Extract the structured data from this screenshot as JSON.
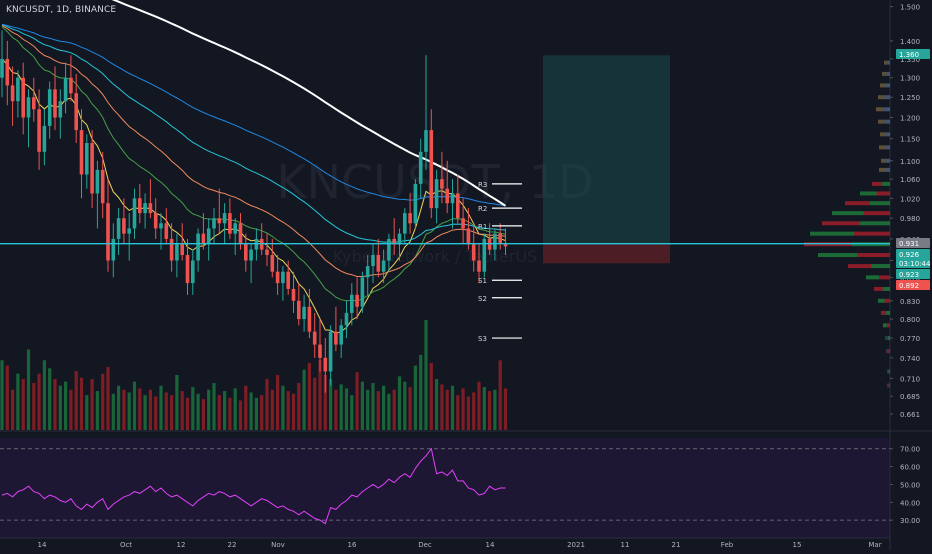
{
  "header": {
    "title": "KNCUSDT, 1D, BINANCE"
  },
  "watermark": {
    "symbol": "KNCUSDT, 1D",
    "description": "Kyber Network / TetherUS"
  },
  "chart_data": [
    {
      "type": "candlestick",
      "yscale": "log",
      "ylim": [
        0.64,
        1.52
      ],
      "price_ticks": [
        "1.500",
        "1.400",
        "1.350",
        "1.300",
        "1.250",
        "1.200",
        "1.150",
        "1.100",
        "1.060",
        "1.020",
        "0.980",
        "0.940",
        "0.900",
        "0.870",
        "0.830",
        "0.800",
        "0.770",
        "0.740",
        "0.710",
        "0.685",
        "0.661"
      ],
      "x_ticks": [
        "14",
        "Oct",
        "12",
        "22",
        "Nov",
        "16",
        "Dec",
        "14",
        "2021",
        "11",
        "21",
        "Feb",
        "15",
        "Mar"
      ],
      "price_labels": [
        {
          "text": "1.360",
          "color": "#26a69a"
        },
        {
          "text": "0.931",
          "color": "#787b86"
        },
        {
          "text": "0.926",
          "color": "#26a69a"
        },
        {
          "text": "03:10:44",
          "color": "#26a69a"
        },
        {
          "text": "0.923",
          "color": "#26a69a"
        },
        {
          "text": "0.892",
          "color": "#ef5350"
        }
      ],
      "pivot_levels": [
        {
          "label": "R3",
          "value": 1.05
        },
        {
          "label": "R2",
          "value": 1.0
        },
        {
          "label": "R1",
          "value": 0.965
        },
        {
          "label": "S1",
          "value": 0.865
        },
        {
          "label": "S2",
          "value": 0.835
        },
        {
          "label": "S3",
          "value": 0.77
        }
      ],
      "horizontal_line": {
        "value": 0.931,
        "color": "#26c6da"
      },
      "position_tool": {
        "entry": 0.931,
        "target": 1.36,
        "stop": 0.895
      },
      "candles": [
        [
          1.3,
          1.43,
          1.25,
          1.35
        ],
        [
          1.35,
          1.4,
          1.23,
          1.28
        ],
        [
          1.28,
          1.33,
          1.18,
          1.24
        ],
        [
          1.24,
          1.32,
          1.2,
          1.3
        ],
        [
          1.3,
          1.34,
          1.16,
          1.2
        ],
        [
          1.2,
          1.27,
          1.13,
          1.25
        ],
        [
          1.25,
          1.3,
          1.19,
          1.22
        ],
        [
          1.22,
          1.27,
          1.08,
          1.12
        ],
        [
          1.12,
          1.22,
          1.09,
          1.18
        ],
        [
          1.18,
          1.29,
          1.15,
          1.27
        ],
        [
          1.27,
          1.33,
          1.17,
          1.2
        ],
        [
          1.2,
          1.27,
          1.15,
          1.24
        ],
        [
          1.24,
          1.34,
          1.21,
          1.3
        ],
        [
          1.3,
          1.36,
          1.24,
          1.26
        ],
        [
          1.26,
          1.31,
          1.14,
          1.17
        ],
        [
          1.17,
          1.22,
          1.02,
          1.07
        ],
        [
          1.07,
          1.16,
          1.04,
          1.14
        ],
        [
          1.14,
          1.17,
          1.0,
          1.03
        ],
        [
          1.03,
          1.1,
          0.96,
          1.08
        ],
        [
          1.08,
          1.12,
          0.98,
          1.01
        ],
        [
          1.01,
          1.06,
          0.88,
          0.9
        ],
        [
          0.9,
          0.97,
          0.87,
          0.94
        ],
        [
          0.94,
          1.0,
          0.91,
          0.98
        ],
        [
          0.98,
          1.02,
          0.93,
          0.95
        ],
        [
          0.95,
          0.99,
          0.9,
          0.96
        ],
        [
          0.96,
          1.04,
          0.94,
          1.02
        ],
        [
          1.02,
          1.05,
          0.97,
          0.99
        ],
        [
          0.99,
          1.03,
          0.96,
          1.01
        ],
        [
          1.01,
          1.06,
          0.98,
          0.99
        ],
        [
          0.99,
          1.02,
          0.94,
          0.96
        ],
        [
          0.96,
          0.99,
          0.92,
          0.97
        ],
        [
          0.97,
          1.0,
          0.93,
          0.94
        ],
        [
          0.94,
          0.97,
          0.88,
          0.9
        ],
        [
          0.9,
          0.95,
          0.87,
          0.93
        ],
        [
          0.93,
          0.97,
          0.9,
          0.91
        ],
        [
          0.91,
          0.94,
          0.84,
          0.86
        ],
        [
          0.86,
          0.92,
          0.84,
          0.9
        ],
        [
          0.9,
          0.96,
          0.88,
          0.95
        ],
        [
          0.95,
          0.99,
          0.92,
          0.93
        ],
        [
          0.93,
          0.98,
          0.9,
          0.96
        ],
        [
          0.96,
          1.0,
          0.93,
          0.98
        ],
        [
          0.98,
          1.04,
          0.95,
          0.97
        ],
        [
          0.97,
          1.01,
          0.93,
          0.99
        ],
        [
          0.99,
          1.02,
          0.94,
          0.95
        ],
        [
          0.95,
          0.98,
          0.91,
          0.97
        ],
        [
          0.97,
          0.99,
          0.92,
          0.93
        ],
        [
          0.93,
          0.95,
          0.88,
          0.9
        ],
        [
          0.9,
          0.93,
          0.86,
          0.92
        ],
        [
          0.92,
          0.96,
          0.9,
          0.94
        ],
        [
          0.94,
          0.97,
          0.91,
          0.92
        ],
        [
          0.92,
          0.95,
          0.89,
          0.91
        ],
        [
          0.91,
          0.94,
          0.87,
          0.88
        ],
        [
          0.88,
          0.91,
          0.84,
          0.86
        ],
        [
          0.86,
          0.89,
          0.83,
          0.88
        ],
        [
          0.88,
          0.9,
          0.84,
          0.85
        ],
        [
          0.85,
          0.88,
          0.81,
          0.83
        ],
        [
          0.83,
          0.86,
          0.79,
          0.8
        ],
        [
          0.8,
          0.84,
          0.78,
          0.82
        ],
        [
          0.82,
          0.85,
          0.77,
          0.78
        ],
        [
          0.78,
          0.81,
          0.74,
          0.76
        ],
        [
          0.76,
          0.8,
          0.72,
          0.74
        ],
        [
          0.74,
          0.77,
          0.69,
          0.72
        ],
        [
          0.72,
          0.79,
          0.7,
          0.78
        ],
        [
          0.78,
          0.82,
          0.75,
          0.76
        ],
        [
          0.76,
          0.8,
          0.74,
          0.79
        ],
        [
          0.79,
          0.83,
          0.77,
          0.81
        ],
        [
          0.81,
          0.86,
          0.79,
          0.84
        ],
        [
          0.84,
          0.87,
          0.8,
          0.82
        ],
        [
          0.82,
          0.88,
          0.81,
          0.87
        ],
        [
          0.87,
          0.91,
          0.84,
          0.89
        ],
        [
          0.89,
          0.93,
          0.86,
          0.91
        ],
        [
          0.91,
          0.94,
          0.87,
          0.88
        ],
        [
          0.88,
          0.92,
          0.86,
          0.9
        ],
        [
          0.9,
          0.95,
          0.88,
          0.94
        ],
        [
          0.94,
          0.98,
          0.91,
          0.93
        ],
        [
          0.93,
          0.96,
          0.9,
          0.95
        ],
        [
          0.95,
          1.0,
          0.93,
          0.99
        ],
        [
          0.99,
          1.03,
          0.95,
          0.97
        ],
        [
          0.97,
          1.06,
          0.96,
          1.05
        ],
        [
          1.05,
          1.15,
          1.02,
          1.12
        ],
        [
          1.12,
          1.36,
          1.08,
          1.17
        ],
        [
          1.17,
          1.22,
          0.98,
          1.0
        ],
        [
          1.0,
          1.08,
          0.97,
          1.06
        ],
        [
          1.06,
          1.12,
          1.01,
          1.04
        ],
        [
          1.04,
          1.1,
          0.99,
          1.01
        ],
        [
          1.01,
          1.06,
          0.96,
          1.03
        ],
        [
          1.03,
          1.07,
          0.97,
          0.98
        ],
        [
          0.98,
          1.02,
          0.93,
          0.96
        ],
        [
          0.96,
          1.0,
          0.92,
          0.93
        ],
        [
          0.93,
          0.97,
          0.88,
          0.9
        ],
        [
          0.9,
          0.93,
          0.86,
          0.88
        ],
        [
          0.88,
          0.95,
          0.87,
          0.94
        ],
        [
          0.94,
          0.97,
          0.91,
          0.92
        ],
        [
          0.92,
          0.96,
          0.9,
          0.95
        ],
        [
          0.95,
          0.97,
          0.92,
          0.93
        ],
        [
          0.93,
          0.96,
          0.91,
          0.926
        ]
      ],
      "volumes": [
        520,
        480,
        300,
        420,
        380,
        600,
        350,
        420,
        520,
        460,
        380,
        330,
        360,
        300,
        440,
        390,
        260,
        380,
        290,
        420,
        470,
        270,
        330,
        300,
        280,
        360,
        310,
        260,
        300,
        250,
        330,
        280,
        260,
        410,
        290,
        240,
        320,
        270,
        230,
        300,
        350,
        260,
        290,
        240,
        310,
        220,
        330,
        280,
        240,
        260,
        380,
        300,
        410,
        330,
        290,
        270,
        350,
        450,
        500,
        390,
        520,
        410,
        380,
        300,
        340,
        310,
        260,
        430,
        360,
        300,
        350,
        290,
        330,
        270,
        300,
        400,
        360,
        320,
        480,
        560,
        820,
        500,
        380,
        340,
        300,
        330,
        260,
        310,
        250,
        280,
        360,
        320,
        290,
        300,
        520,
        310
      ],
      "rsi": [
        44,
        45,
        43,
        46,
        47,
        49,
        46,
        45,
        42,
        44,
        43,
        41,
        40,
        42,
        38,
        36,
        39,
        37,
        40,
        42,
        36,
        39,
        41,
        43,
        44,
        46,
        45,
        47,
        49,
        46,
        48,
        45,
        43,
        44,
        42,
        40,
        38,
        41,
        43,
        45,
        44,
        46,
        45,
        43,
        44,
        42,
        40,
        38,
        40,
        42,
        41,
        39,
        37,
        38,
        36,
        35,
        33,
        35,
        33,
        31,
        30,
        28,
        37,
        36,
        39,
        41,
        44,
        43,
        46,
        48,
        50,
        48,
        50,
        53,
        51,
        54,
        56,
        54,
        59,
        63,
        66,
        70,
        56,
        57,
        55,
        58,
        52,
        52,
        48,
        47,
        44,
        45,
        49,
        47,
        48,
        48
      ],
      "rsi_ticks": [
        "70.00",
        "60.00",
        "50.00",
        "40.00",
        "30.00"
      ],
      "rsi_levels": [
        70,
        30
      ]
    }
  ]
}
